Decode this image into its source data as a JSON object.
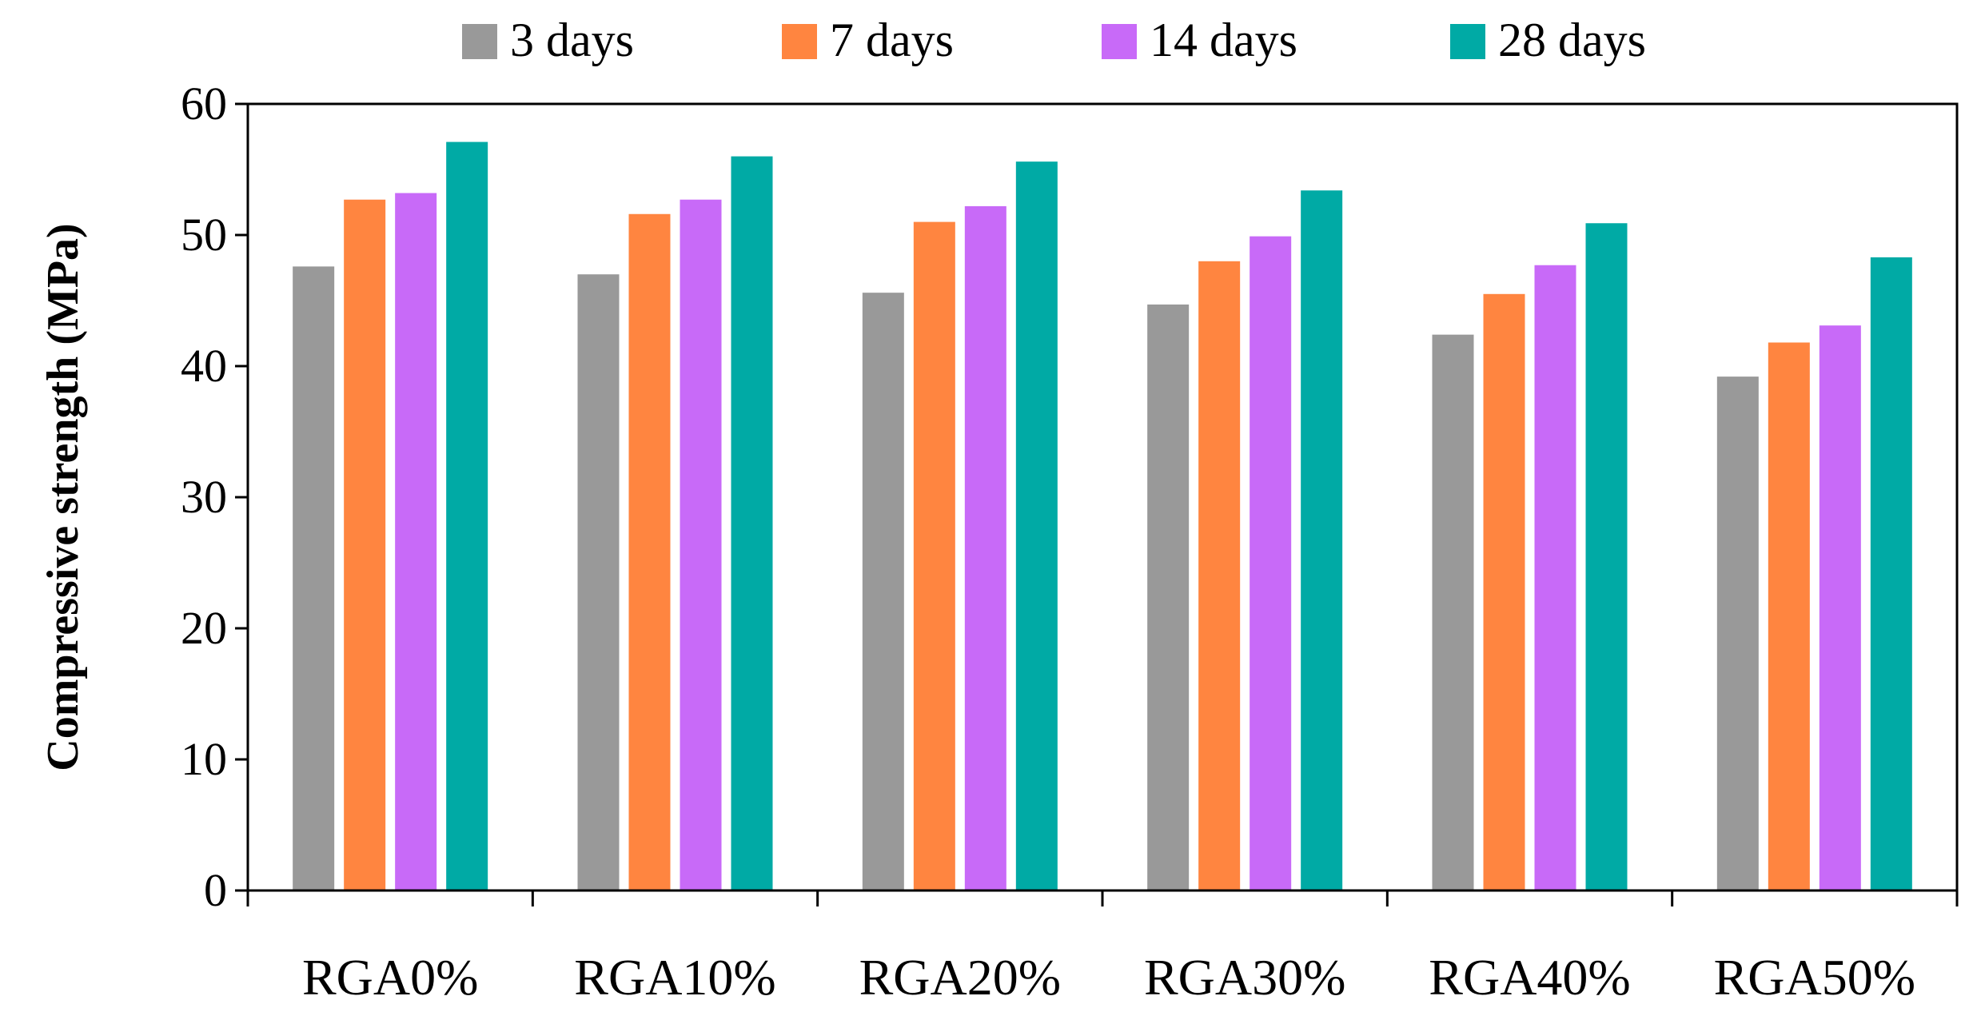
{
  "chart_data": {
    "type": "bar",
    "title": "",
    "xlabel": "",
    "ylabel": "Compressive strength (MPa)",
    "ylim": [
      0,
      60
    ],
    "yticks": [
      0,
      10,
      20,
      30,
      40,
      50,
      60
    ],
    "grid": false,
    "legend_position": "top",
    "categories": [
      "RGA0%",
      "RGA10%",
      "RGA20%",
      "RGA30%",
      "RGA40%",
      "RGA50%"
    ],
    "series": [
      {
        "name": "3 days",
        "color": "#999999",
        "values": [
          47.6,
          47.0,
          45.6,
          44.7,
          42.4,
          39.2
        ]
      },
      {
        "name": "7 days",
        "color": "#ff8540",
        "values": [
          52.7,
          51.6,
          51.0,
          48.0,
          45.5,
          41.8
        ]
      },
      {
        "name": "14 days",
        "color": "#c86af8",
        "values": [
          53.2,
          52.7,
          52.2,
          49.9,
          47.7,
          43.1
        ]
      },
      {
        "name": "28 days",
        "color": "#00aaa5",
        "values": [
          57.1,
          56.0,
          55.6,
          53.4,
          50.9,
          48.3
        ]
      }
    ]
  }
}
